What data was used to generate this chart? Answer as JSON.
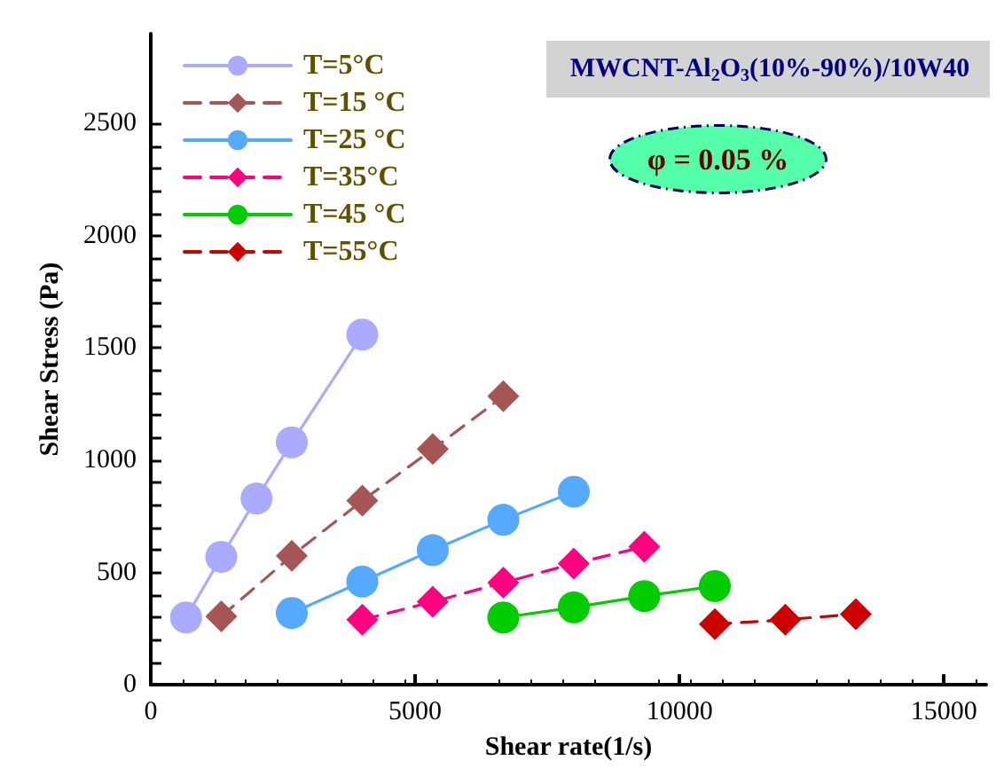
{
  "chart_data": {
    "type": "line",
    "xlabel": "Shear rate(1/s)",
    "ylabel": "Shear Stress (Pa)",
    "xlim": [
      0,
      15800
    ],
    "ylim": [
      0,
      2900
    ],
    "xticks": [
      0,
      5000,
      10000,
      15000
    ],
    "yticks": [
      0,
      500,
      1000,
      1500,
      2000,
      2500
    ],
    "grid": false,
    "legend": "top left",
    "annotations": [
      "MWCNT-Al$_{2}$O$_{3}$(10%-90%)/10W40",
      "φ = 0.05 %"
    ],
    "series": [
      {
        "name": "T=5°C",
        "color": "#aaaaff",
        "marker": "circle",
        "line_style": "solid",
        "x": [
          667,
          1333,
          2000,
          2667,
          4000
        ],
        "values": [
          300,
          570,
          830,
          1080,
          1560
        ]
      },
      {
        "name": "T=15 °C",
        "color": "#a65555",
        "marker": "diamond",
        "line_style": "dashed",
        "x": [
          1333,
          2667,
          4000,
          5333,
          6667
        ],
        "values": [
          305,
          575,
          820,
          1050,
          1285
        ]
      },
      {
        "name": "T=25 °C",
        "color": "#55aaff",
        "marker": "circle",
        "line_style": "solid",
        "x": [
          2667,
          4000,
          5333,
          6667,
          8000
        ],
        "values": [
          320,
          460,
          600,
          735,
          860
        ]
      },
      {
        "name": "T=35°C",
        "color": "#ff0080",
        "marker": "diamond",
        "line_style": "dashed",
        "x": [
          4000,
          5333,
          6667,
          8000,
          9333
        ],
        "values": [
          290,
          370,
          455,
          540,
          615
        ]
      },
      {
        "name": "T=45 °C",
        "color": "#00cc00",
        "marker": "circle",
        "line_style": "solid",
        "x": [
          6667,
          8000,
          9333,
          10667
        ],
        "values": [
          300,
          345,
          395,
          440
        ]
      },
      {
        "name": "T=55°C",
        "color": "#cc0000",
        "marker": "diamond",
        "line_style": "dashed",
        "x": [
          10667,
          12000,
          13333
        ],
        "values": [
          270,
          290,
          315
        ]
      }
    ]
  }
}
